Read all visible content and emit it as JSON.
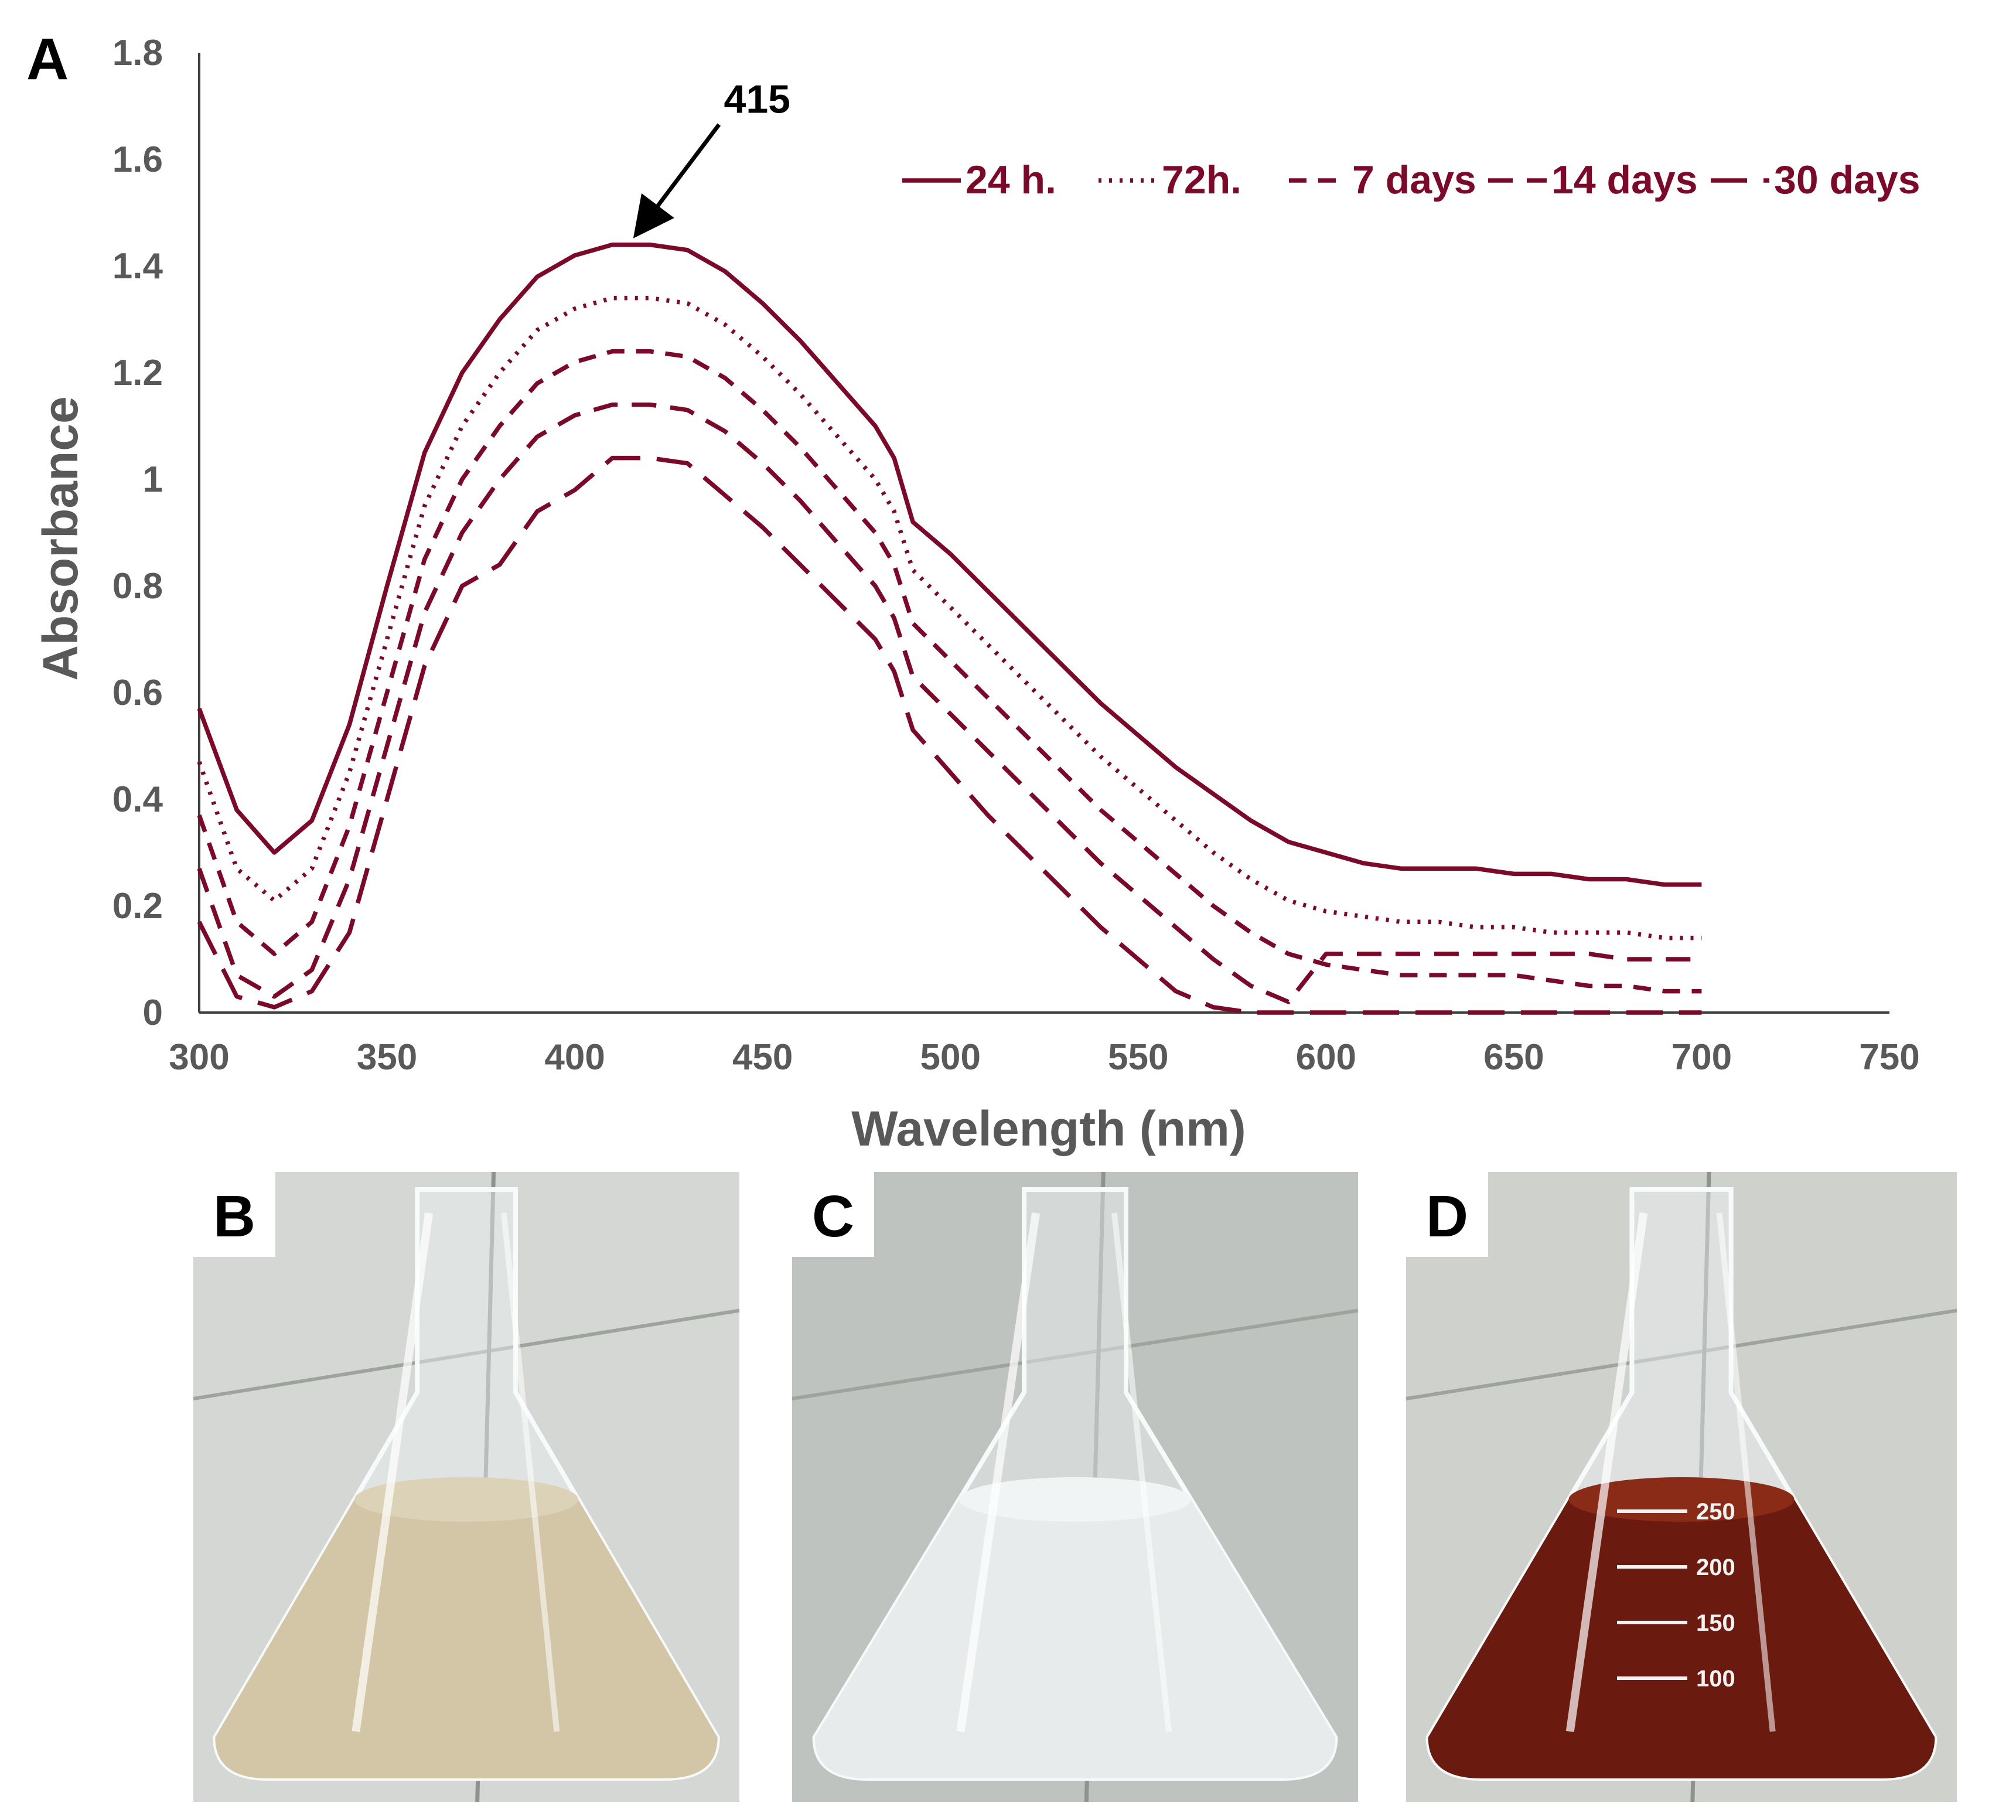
{
  "figure": {
    "panel_a_label": "A",
    "photos": [
      {
        "label": "B",
        "liquid": "#d3c6a6",
        "liquid_top": "#dcd2b8",
        "floor": "#d4d7d3",
        "graduations": []
      },
      {
        "label": "C",
        "liquid": "#e7ebec",
        "liquid_top": "#f1f4f5",
        "floor": "#bfc3bf",
        "graduations": []
      },
      {
        "label": "D",
        "liquid": "#6b1a10",
        "liquid_top": "#8a2b18",
        "floor": "#cfd1cc",
        "graduations": [
          "250",
          "200",
          "150",
          "100"
        ]
      }
    ]
  },
  "chart_data": {
    "type": "line",
    "xlabel": "Wavelength (nm)",
    "ylabel": "Absorbance",
    "xlim": [
      300,
      750
    ],
    "ylim": [
      0,
      1.8
    ],
    "xticks": [
      300,
      350,
      400,
      450,
      500,
      550,
      600,
      650,
      700,
      750
    ],
    "yticks": [
      "0",
      "0.2",
      "0.4",
      "0.6",
      "0.8",
      "1",
      "1.2",
      "1.4",
      "1.6",
      "1.8"
    ],
    "color": "#7b0a2a",
    "annotation": {
      "text": "415",
      "x": 415,
      "y": 1.44
    },
    "legend_position": "top-right",
    "x": [
      300,
      310,
      320,
      330,
      340,
      350,
      360,
      370,
      380,
      390,
      400,
      410,
      420,
      430,
      440,
      450,
      460,
      470,
      480,
      485,
      490,
      500,
      510,
      520,
      530,
      540,
      550,
      560,
      570,
      580,
      590,
      600,
      610,
      620,
      630,
      640,
      650,
      660,
      670,
      680,
      690,
      700
    ],
    "series": [
      {
        "name": "24 h.",
        "dash": "solid",
        "values": [
          0.57,
          0.38,
          0.3,
          0.36,
          0.54,
          0.8,
          1.05,
          1.2,
          1.3,
          1.38,
          1.42,
          1.44,
          1.44,
          1.43,
          1.39,
          1.33,
          1.26,
          1.18,
          1.1,
          1.04,
          0.92,
          0.86,
          0.79,
          0.72,
          0.65,
          0.58,
          0.52,
          0.46,
          0.41,
          0.36,
          0.32,
          0.3,
          0.28,
          0.27,
          0.27,
          0.27,
          0.26,
          0.26,
          0.25,
          0.25,
          0.24,
          0.24
        ]
      },
      {
        "name": "72h.",
        "dash": "dotted",
        "values": [
          0.47,
          0.27,
          0.21,
          0.27,
          0.45,
          0.7,
          0.95,
          1.1,
          1.2,
          1.28,
          1.32,
          1.34,
          1.34,
          1.33,
          1.29,
          1.23,
          1.16,
          1.08,
          1.0,
          0.94,
          0.83,
          0.76,
          0.69,
          0.62,
          0.55,
          0.48,
          0.42,
          0.36,
          0.3,
          0.25,
          0.21,
          0.19,
          0.18,
          0.17,
          0.17,
          0.16,
          0.16,
          0.15,
          0.15,
          0.15,
          0.14,
          0.14
        ]
      },
      {
        "name": "7 days",
        "dash": "short-dash",
        "values": [
          0.37,
          0.17,
          0.11,
          0.17,
          0.35,
          0.6,
          0.85,
          1.0,
          1.1,
          1.18,
          1.22,
          1.24,
          1.24,
          1.23,
          1.19,
          1.13,
          1.06,
          0.98,
          0.9,
          0.84,
          0.73,
          0.66,
          0.59,
          0.52,
          0.45,
          0.38,
          0.32,
          0.26,
          0.2,
          0.15,
          0.11,
          0.09,
          0.08,
          0.07,
          0.07,
          0.07,
          0.07,
          0.06,
          0.05,
          0.05,
          0.04,
          0.04
        ]
      },
      {
        "name": "14 days",
        "dash": "medium-dash",
        "values": [
          0.27,
          0.07,
          0.03,
          0.08,
          0.25,
          0.5,
          0.75,
          0.9,
          1.0,
          1.08,
          1.12,
          1.14,
          1.14,
          1.13,
          1.09,
          1.03,
          0.96,
          0.88,
          0.8,
          0.74,
          0.63,
          0.56,
          0.49,
          0.42,
          0.35,
          0.28,
          0.22,
          0.16,
          0.1,
          0.05,
          0.02,
          0.11,
          0.11,
          0.11,
          0.11,
          0.11,
          0.11,
          0.11,
          0.11,
          0.1,
          0.1,
          0.1
        ]
      },
      {
        "name": "30 days",
        "dash": "long-dash",
        "values": [
          0.17,
          0.03,
          0.01,
          0.04,
          0.15,
          0.4,
          0.65,
          0.8,
          0.84,
          0.94,
          0.98,
          1.04,
          1.04,
          1.03,
          0.97,
          0.91,
          0.84,
          0.77,
          0.7,
          0.64,
          0.53,
          0.45,
          0.37,
          0.3,
          0.23,
          0.16,
          0.1,
          0.04,
          0.01,
          0.0,
          0.0,
          0.0,
          0.0,
          0.0,
          0.0,
          0.0,
          0.0,
          0.0,
          0.0,
          0.0,
          0.0,
          0.0
        ]
      }
    ]
  }
}
